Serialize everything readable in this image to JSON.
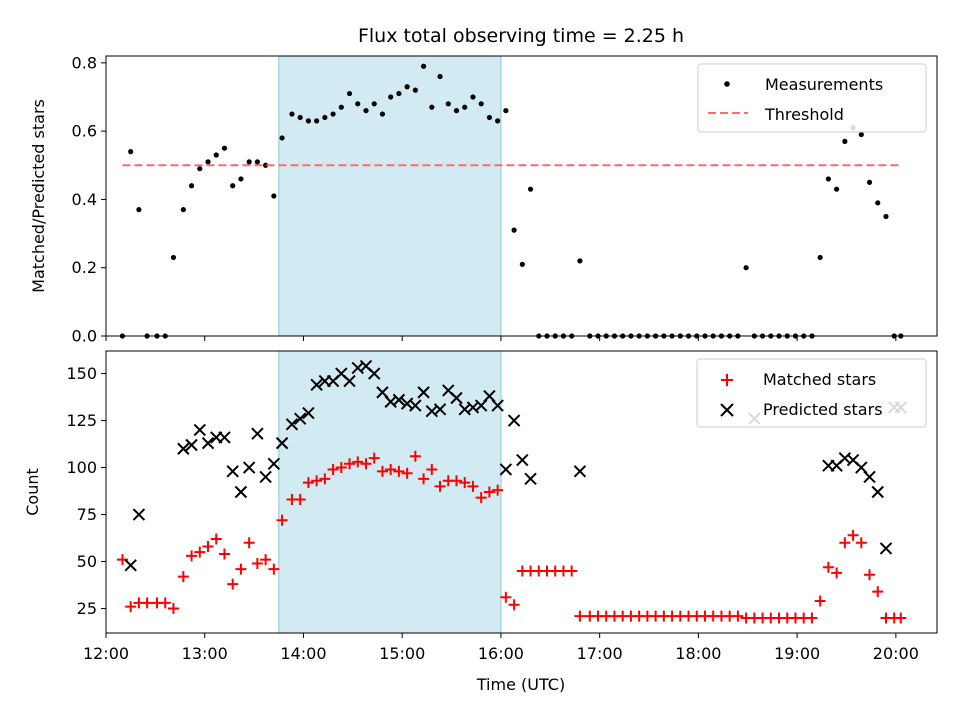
{
  "chart_data": [
    {
      "type": "scatter",
      "title": "Flux total observing time = 2.25 h",
      "xlabel": "",
      "ylabel": "Matched/Predicted stars",
      "xlim": [
        "12:00",
        "20:25"
      ],
      "ylim": [
        0,
        0.82
      ],
      "yticks": [
        "0.0",
        "0.2",
        "0.4",
        "0.6",
        "0.8"
      ],
      "shaded_interval": [
        "13:45",
        "16:00"
      ],
      "shade_color": "#add8e6",
      "legend_position": "top-right",
      "series": [
        {
          "name": "Measurements",
          "kind": "points",
          "color": "#000000",
          "x": [
            "12:10",
            "12:15",
            "12:20",
            "12:25",
            "12:31",
            "12:36",
            "12:41",
            "12:47",
            "12:52",
            "12:57",
            "13:02",
            "13:07",
            "13:12",
            "13:17",
            "13:22",
            "13:27",
            "13:32",
            "13:37",
            "13:42",
            "13:47",
            "13:53",
            "13:58",
            "14:03",
            "14:08",
            "14:13",
            "14:18",
            "14:23",
            "14:28",
            "14:33",
            "14:38",
            "14:43",
            "14:48",
            "14:53",
            "14:58",
            "15:03",
            "15:08",
            "15:13",
            "15:18",
            "15:23",
            "15:28",
            "15:33",
            "15:38",
            "15:43",
            "15:48",
            "15:53",
            "15:58",
            "16:03",
            "16:08",
            "16:13",
            "16:18",
            "16:23",
            "16:28",
            "16:33",
            "16:38",
            "16:43",
            "16:48",
            "16:54",
            "16:59",
            "17:04",
            "17:09",
            "17:14",
            "17:19",
            "17:24",
            "17:29",
            "17:34",
            "17:39",
            "17:44",
            "17:49",
            "17:54",
            "17:59",
            "18:04",
            "18:09",
            "18:14",
            "18:19",
            "18:24",
            "18:29",
            "18:34",
            "18:39",
            "18:44",
            "18:49",
            "18:54",
            "18:59",
            "19:04",
            "19:09",
            "19:14",
            "19:19",
            "19:24",
            "19:29",
            "19:34",
            "19:39",
            "19:44",
            "19:49",
            "19:54",
            "19:59",
            "20:03"
          ],
          "y": [
            0.0,
            0.54,
            0.37,
            0.0,
            0.0,
            0.0,
            0.23,
            0.37,
            0.44,
            0.49,
            0.51,
            0.53,
            0.55,
            0.44,
            0.46,
            0.51,
            0.51,
            0.5,
            0.41,
            0.58,
            0.65,
            0.64,
            0.63,
            0.63,
            0.64,
            0.65,
            0.67,
            0.71,
            0.68,
            0.66,
            0.68,
            0.65,
            0.7,
            0.71,
            0.73,
            0.72,
            0.79,
            0.67,
            0.76,
            0.68,
            0.66,
            0.67,
            0.7,
            0.68,
            0.64,
            0.63,
            0.66,
            0.31,
            0.21,
            0.43,
            0.0,
            0.0,
            0.0,
            0.0,
            0.0,
            0.22,
            0.0,
            0.0,
            0.0,
            0.0,
            0.0,
            0.0,
            0.0,
            0.0,
            0.0,
            0.0,
            0.0,
            0.0,
            0.0,
            0.0,
            0.0,
            0.0,
            0.0,
            0.0,
            0.0,
            0.2,
            0.0,
            0.0,
            0.0,
            0.0,
            0.0,
            0.0,
            0.0,
            0.0,
            0.23,
            0.46,
            0.43,
            0.57,
            0.61,
            0.59,
            0.45,
            0.39,
            0.35,
            0.0,
            0.0
          ]
        },
        {
          "name": "Threshold",
          "kind": "dashed-line",
          "color": "#ff6b6b",
          "x": [
            "12:10",
            "20:03"
          ],
          "y": [
            0.5,
            0.5
          ]
        }
      ]
    },
    {
      "type": "scatter",
      "title": "",
      "xlabel": "Time (UTC)",
      "ylabel": "Count",
      "xlim": [
        "12:00",
        "20:25"
      ],
      "ylim": [
        12,
        162
      ],
      "yticks": [
        "25",
        "50",
        "75",
        "100",
        "125",
        "150"
      ],
      "xticks": [
        "12:00",
        "13:00",
        "14:00",
        "15:00",
        "16:00",
        "17:00",
        "18:00",
        "19:00",
        "20:00"
      ],
      "shaded_interval": [
        "13:45",
        "16:00"
      ],
      "shade_color": "#add8e6",
      "legend_position": "top-right",
      "series": [
        {
          "name": "Matched stars",
          "kind": "plus",
          "color": "#ff0000",
          "x": [
            "12:10",
            "12:15",
            "12:20",
            "12:25",
            "12:31",
            "12:36",
            "12:41",
            "12:47",
            "12:52",
            "12:57",
            "13:02",
            "13:07",
            "13:12",
            "13:17",
            "13:22",
            "13:27",
            "13:32",
            "13:37",
            "13:42",
            "13:47",
            "13:53",
            "13:58",
            "14:03",
            "14:08",
            "14:13",
            "14:18",
            "14:23",
            "14:28",
            "14:33",
            "14:38",
            "14:43",
            "14:48",
            "14:53",
            "14:58",
            "15:03",
            "15:08",
            "15:13",
            "15:18",
            "15:23",
            "15:28",
            "15:33",
            "15:38",
            "15:43",
            "15:48",
            "15:53",
            "15:58",
            "16:03",
            "16:08",
            "16:13",
            "16:18",
            "16:23",
            "16:28",
            "16:33",
            "16:38",
            "16:43",
            "16:48",
            "16:54",
            "16:59",
            "17:04",
            "17:09",
            "17:14",
            "17:19",
            "17:24",
            "17:29",
            "17:34",
            "17:39",
            "17:44",
            "17:49",
            "17:54",
            "17:59",
            "18:04",
            "18:09",
            "18:14",
            "18:19",
            "18:24",
            "18:29",
            "18:34",
            "18:39",
            "18:44",
            "18:49",
            "18:54",
            "18:59",
            "19:04",
            "19:09",
            "19:14",
            "19:19",
            "19:24",
            "19:29",
            "19:34",
            "19:39",
            "19:44",
            "19:49",
            "19:54",
            "19:59",
            "20:03"
          ],
          "y": [
            51,
            26,
            28,
            28,
            28,
            28,
            25,
            42,
            53,
            55,
            58,
            62,
            54,
            38,
            46,
            60,
            49,
            51,
            46,
            72,
            83,
            83,
            92,
            93,
            94,
            99,
            100,
            102,
            103,
            102,
            105,
            98,
            99,
            98,
            97,
            106,
            94,
            99,
            90,
            93,
            93,
            92,
            90,
            84,
            87,
            88,
            31,
            27,
            45,
            45,
            45,
            45,
            45,
            45,
            45,
            21,
            21,
            21,
            21,
            21,
            21,
            21,
            21,
            21,
            21,
            21,
            21,
            21,
            21,
            21,
            21,
            21,
            21,
            21,
            21,
            20,
            20,
            20,
            20,
            20,
            20,
            20,
            20,
            20,
            29,
            47,
            44,
            60,
            64,
            60,
            43,
            34,
            20,
            20,
            20
          ]
        },
        {
          "name": "Predicted stars",
          "kind": "cross",
          "color": "#000000",
          "x": [
            "12:15",
            "12:20",
            "12:47",
            "12:52",
            "12:57",
            "13:02",
            "13:07",
            "13:12",
            "13:17",
            "13:22",
            "13:27",
            "13:32",
            "13:37",
            "13:42",
            "13:47",
            "13:53",
            "13:58",
            "14:03",
            "14:08",
            "14:13",
            "14:18",
            "14:23",
            "14:28",
            "14:33",
            "14:38",
            "14:43",
            "14:48",
            "14:53",
            "14:58",
            "15:03",
            "15:08",
            "15:13",
            "15:18",
            "15:23",
            "15:28",
            "15:33",
            "15:38",
            "15:43",
            "15:48",
            "15:53",
            "15:58",
            "16:03",
            "16:08",
            "16:13",
            "16:18",
            "16:48",
            "18:34",
            "19:19",
            "19:24",
            "19:29",
            "19:34",
            "19:39",
            "19:44",
            "19:49",
            "19:54",
            "19:59",
            "20:03"
          ],
          "y": [
            48,
            75,
            110,
            112,
            120,
            113,
            116,
            116,
            98,
            87,
            100,
            118,
            95,
            102,
            113,
            123,
            126,
            129,
            144,
            146,
            146,
            150,
            146,
            153,
            154,
            150,
            140,
            135,
            136,
            134,
            133,
            140,
            130,
            131,
            141,
            137,
            131,
            132,
            133,
            138,
            133,
            99,
            125,
            104,
            94,
            98,
            126,
            101,
            101,
            105,
            104,
            100,
            95,
            87,
            57,
            132,
            132
          ]
        }
      ]
    }
  ]
}
